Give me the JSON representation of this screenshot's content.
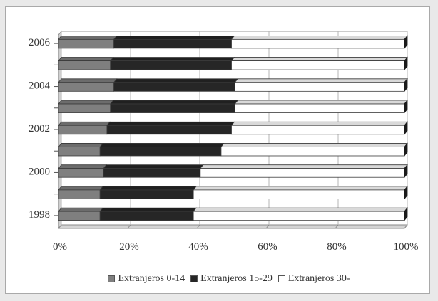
{
  "chart_data": {
    "type": "bar",
    "orientation": "horizontal",
    "stacked": "percent",
    "categories": [
      "1998",
      "1999",
      "2000",
      "2001",
      "2002",
      "2003",
      "2004",
      "2005",
      "2006"
    ],
    "category_labels": [
      "1998",
      "",
      "2000",
      "",
      "2002",
      "",
      "2004",
      "",
      "2006"
    ],
    "series": [
      {
        "name": "Extranjeros 0-14",
        "color": "#7f7f7f",
        "values": [
          12,
          12,
          13,
          12,
          14,
          15,
          16,
          15,
          16
        ]
      },
      {
        "name": "Extranjeros 15-29",
        "color": "#262626",
        "values": [
          27,
          27,
          28,
          35,
          36,
          36,
          35,
          35,
          34
        ]
      },
      {
        "name": "Extranjeros 30-",
        "color": "#ffffff",
        "values": [
          61,
          61,
          59,
          53,
          50,
          49,
          49,
          50,
          50
        ]
      }
    ],
    "x_ticks": [
      "0%",
      "20%",
      "40%",
      "60%",
      "80%",
      "100%"
    ],
    "xlim": [
      0,
      100
    ],
    "grid": true,
    "legend_position": "bottom"
  }
}
